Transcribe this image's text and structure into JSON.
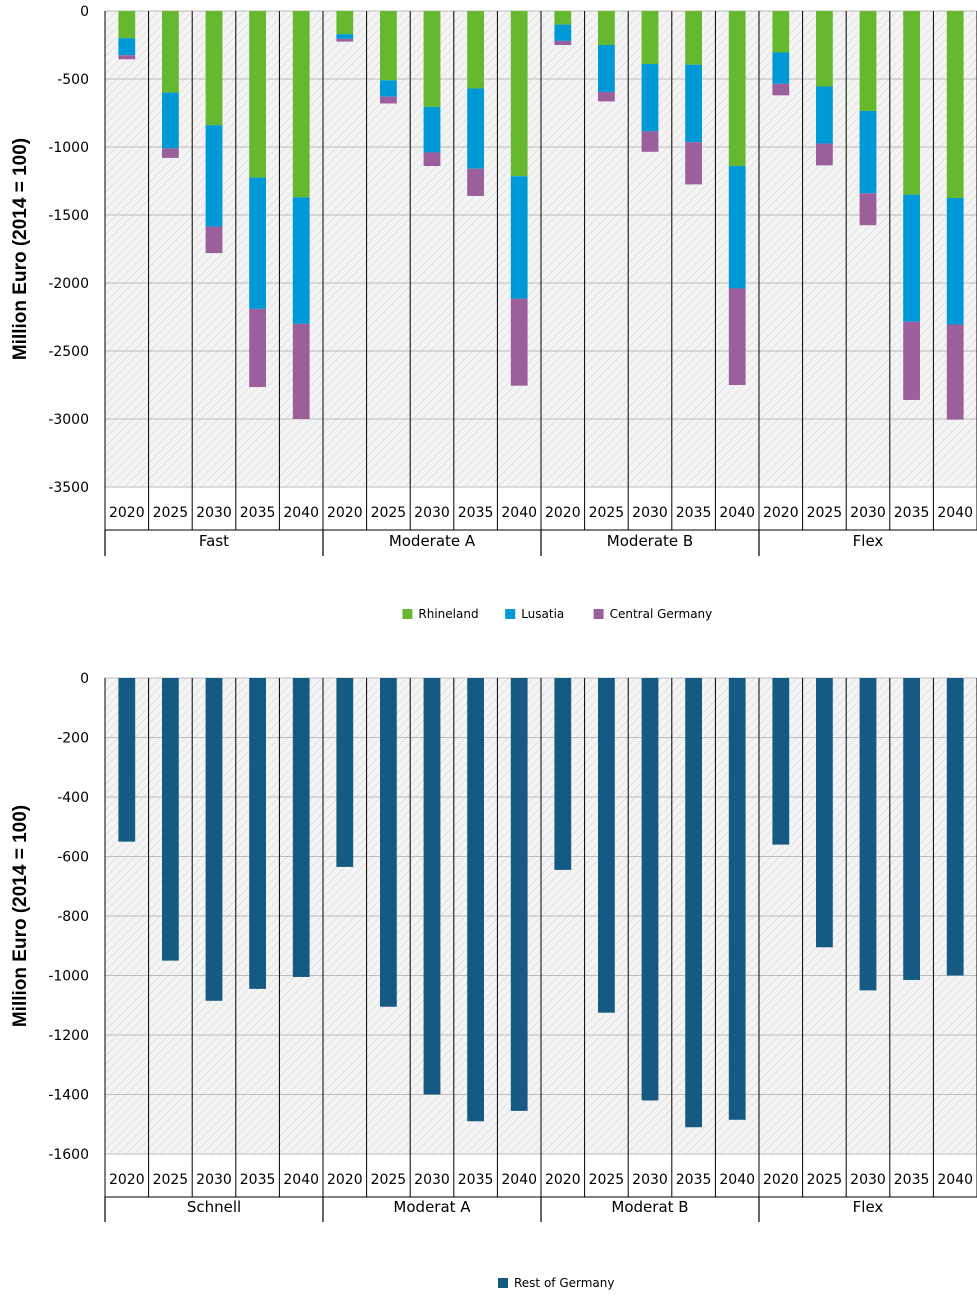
{
  "charts": [
    {
      "chart_data": {
        "type": "bar",
        "stacked": true,
        "ylabel": "Million Euro (2014 = 100)",
        "ylim": [
          -3500,
          0
        ],
        "yticks": [
          0,
          -500,
          -1000,
          -1500,
          -2000,
          -2500,
          -3000,
          -3500
        ],
        "groups": [
          "Fast",
          "Moderate A",
          "Moderate B",
          "Flex"
        ],
        "years": [
          "2020",
          "2025",
          "2030",
          "2035",
          "2040"
        ],
        "series": [
          {
            "name": "Rhineland",
            "color": "#66b82e",
            "values": [
              [
                -200,
                -600,
                -840,
                -1225,
                -1370
              ],
              [
                -170,
                -510,
                -705,
                -570,
                -1215
              ],
              [
                -100,
                -250,
                -390,
                -395,
                -1140
              ],
              [
                -305,
                -555,
                -735,
                -1350,
                -1375
              ]
            ]
          },
          {
            "name": "Lusatia",
            "color": "#0099d8",
            "values": [
              [
                -125,
                -410,
                -745,
                -965,
                -930
              ],
              [
                -35,
                -120,
                -335,
                -590,
                -900
              ],
              [
                -120,
                -345,
                -495,
                -570,
                -900
              ],
              [
                -230,
                -420,
                -605,
                -935,
                -930
              ]
            ]
          },
          {
            "name": "Central Germany",
            "color": "#9b5f9c",
            "values": [
              [
                -30,
                -70,
                -195,
                -575,
                -700
              ],
              [
                -20,
                -50,
                -100,
                -200,
                -640
              ],
              [
                -30,
                -70,
                -150,
                -310,
                -710
              ],
              [
                -85,
                -160,
                -235,
                -575,
                -700
              ]
            ]
          }
        ],
        "legend_position": "bottom"
      }
    },
    {
      "chart_data": {
        "type": "bar",
        "ylabel": "Million Euro (2014 = 100)",
        "ylim": [
          -1600,
          0
        ],
        "yticks": [
          0,
          -200,
          -400,
          -600,
          -800,
          -1000,
          -1200,
          -1400,
          -1600
        ],
        "groups": [
          "Schnell",
          "Moderat A",
          "Moderat B",
          "Flex"
        ],
        "years": [
          "2020",
          "2025",
          "2030",
          "2035",
          "2040"
        ],
        "series": [
          {
            "name": "Rest of Germany",
            "color": "#145a82",
            "values": [
              [
                -550,
                -950,
                -1085,
                -1045,
                -1005
              ],
              [
                -635,
                -1105,
                -1400,
                -1490,
                -1455
              ],
              [
                -645,
                -1125,
                -1420,
                -1510,
                -1485
              ],
              [
                -560,
                -905,
                -1050,
                -1015,
                -1000
              ]
            ]
          }
        ],
        "legend_position": "bottom"
      }
    }
  ]
}
